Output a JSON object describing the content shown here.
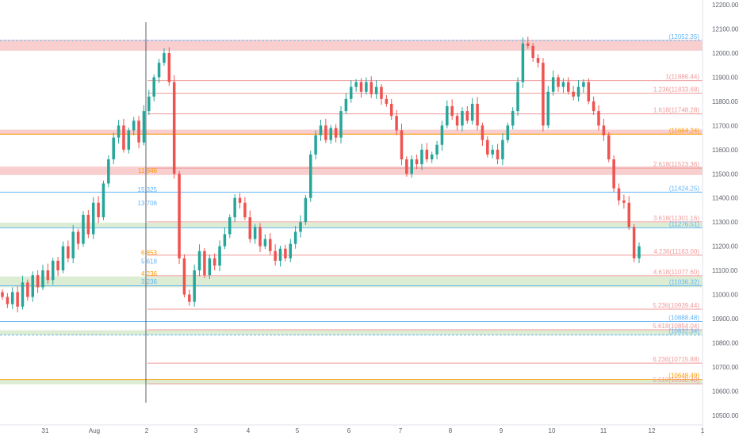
{
  "colors": {
    "background": "#ffffff",
    "up": "#26a69a",
    "down": "#ef5350",
    "axis_text": "#5d606b",
    "axis_line": "#e0e3eb",
    "red_zone": "#f7c9c9",
    "green_zone": "#d8ebcf",
    "blue_line": "#64b5f6",
    "red_line": "#f09a9a",
    "orange_line": "#ff9800",
    "green_line": "#a5d6a7"
  },
  "chart_data": {
    "type": "candlestick",
    "title": "",
    "xlabel": "",
    "ylabel": "",
    "x_ticks": [
      "31",
      "Aug",
      "2",
      "3",
      "4",
      "5",
      "6",
      "7",
      "8",
      "9",
      "10",
      "11",
      "12",
      "1"
    ],
    "y_ticks": [
      "12200.00",
      "12100.00",
      "12000.00",
      "11900.00",
      "11800.00",
      "11700.00",
      "11600.00",
      "11500.00",
      "11400.00",
      "11300.00",
      "11200.00",
      "11100.00",
      "11000.00",
      "10900.00",
      "10800.00",
      "10700.00",
      "10600.00",
      "10500.00"
    ],
    "ylim": [
      10460,
      12220
    ],
    "grid": false,
    "zones": [
      {
        "from": 12010,
        "to": 12055,
        "color": "red"
      },
      {
        "from": 11663,
        "to": 11683,
        "color": "red"
      },
      {
        "from": 11495,
        "to": 11530,
        "color": "red"
      },
      {
        "from": 11278,
        "to": 11298,
        "color": "green"
      },
      {
        "from": 11030,
        "to": 11075,
        "color": "green"
      },
      {
        "from": 10832,
        "to": 10852,
        "color": "green"
      },
      {
        "from": 10628,
        "to": 10648,
        "color": "green"
      }
    ],
    "fib_levels": [
      {
        "label": "1(11886.44)",
        "value": 11886.44,
        "color": "red"
      },
      {
        "label": "1.236(11833.68)",
        "value": 11833.68,
        "color": "red"
      },
      {
        "label": "1.618(11748.28)",
        "value": 11748.28,
        "color": "red"
      },
      {
        "label": "2.618(11523.36)",
        "value": 11523.36,
        "color": "red"
      },
      {
        "label": "3.618(11301.16)",
        "value": 11301.16,
        "color": "red"
      },
      {
        "label": "4.236(11163.00)",
        "value": 11163.0,
        "color": "red"
      },
      {
        "label": "4.618(11077.60)",
        "value": 11077.6,
        "color": "red"
      },
      {
        "label": "5.236(10939.44)",
        "value": 10939.44,
        "color": "red"
      },
      {
        "label": "5.618(10854.04)",
        "value": 10854.04,
        "color": "red"
      },
      {
        "label": "6.236(10715.88)",
        "value": 10715.88,
        "color": "red"
      },
      {
        "label": "6.618(10630.48)",
        "value": 10630.48,
        "color": "red"
      }
    ],
    "price_levels": [
      {
        "label": "(12052.35)",
        "value": 12052.35,
        "color": "blue"
      },
      {
        "label": "(11664.24)",
        "value": 11664.24,
        "color": "orange"
      },
      {
        "label": "(11424.25)",
        "value": 11424.25,
        "color": "blue"
      },
      {
        "label": "(11276.51)",
        "value": 11276.51,
        "color": "blue"
      },
      {
        "label": "(11036.32)",
        "value": 11036.32,
        "color": "blue"
      },
      {
        "label": "(10888.48)",
        "value": 10888.48,
        "color": "blue"
      },
      {
        "label": "(10832.34)",
        "value": 10832.34,
        "color": "blue"
      },
      {
        "label": "(10648.49)",
        "value": 10648.49,
        "color": "orange"
      }
    ],
    "aug2_levels": [
      {
        "label": "11.946",
        "value": 11505,
        "color": "orange"
      },
      {
        "label": "15.325",
        "value": 11425,
        "color": "blue"
      },
      {
        "label": "13.706",
        "value": 11370,
        "color": "blue"
      },
      {
        "label": "6.853",
        "value": 11165,
        "color": "orange"
      },
      {
        "label": "5.618",
        "value": 11128,
        "color": "blue"
      },
      {
        "label": "4.236",
        "value": 11078,
        "color": "orange"
      },
      {
        "label": "3.236",
        "value": 11045,
        "color": "blue"
      }
    ],
    "closes": [
      10990,
      10960,
      11010,
      10950,
      11050,
      10990,
      11080,
      11030,
      11100,
      11060,
      11140,
      11100,
      11200,
      11150,
      11260,
      11210,
      11330,
      11250,
      11380,
      11320,
      11460,
      11560,
      11650,
      11700,
      11600,
      11680,
      11720,
      11630,
      11760,
      11820,
      11900,
      11960,
      12000,
      11880,
      11500,
      11150,
      11000,
      10970,
      11100,
      11180,
      11080,
      11150,
      11120,
      11200,
      11250,
      11320,
      11400,
      11380,
      11320,
      11230,
      11280,
      11200,
      11230,
      11180,
      11140,
      11190,
      11150,
      11210,
      11260,
      11300,
      11400,
      11580,
      11660,
      11700,
      11640,
      11690,
      11650,
      11760,
      11810,
      11860,
      11880,
      11840,
      11880,
      11830,
      11860,
      11810,
      11790,
      11740,
      11680,
      11560,
      11500,
      11560,
      11540,
      11600,
      11560,
      11580,
      11620,
      11700,
      11780,
      11740,
      11700,
      11760,
      11720,
      11790,
      11700,
      11640,
      11580,
      11600,
      11560,
      11640,
      11700,
      11760,
      11880,
      12040,
      12030,
      11980,
      11960,
      11700,
      11840,
      11900,
      11860,
      11880,
      11840,
      11820,
      11860,
      11880,
      11800,
      11760,
      11700,
      11660,
      11560,
      11440,
      11390,
      11380,
      11280,
      11150,
      11200
    ]
  }
}
